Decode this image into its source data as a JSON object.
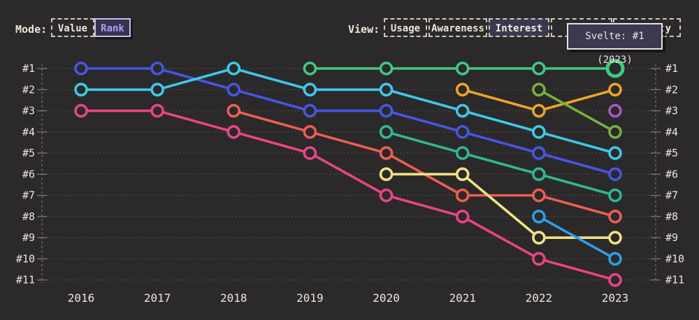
{
  "toolbar": {
    "mode": {
      "label": "Mode:",
      "options": [
        {
          "label": "Value",
          "selected": false
        },
        {
          "label": "Rank",
          "selected": true
        }
      ]
    },
    "view": {
      "label": "View:",
      "options": [
        {
          "label": "Usage",
          "selected": false
        },
        {
          "label": "Awareness",
          "selected": false
        },
        {
          "label": "Interest",
          "selected": true
        },
        {
          "label": "",
          "selected": false,
          "note": "occluded by tooltip"
        },
        {
          "label": "ty",
          "selected": false,
          "note": "partially occluded by tooltip"
        }
      ]
    }
  },
  "tooltip": {
    "text": "Svelte: #1 (2023)"
  },
  "colors": {
    "background": "#2b292a",
    "text": "#ece6da",
    "grid": "#55504b",
    "axis": "#7d776e",
    "accent_purple": "#b29df2",
    "selected_bg": "#3b3850"
  },
  "chart_data": {
    "type": "line",
    "subtype": "bump-rank-chart",
    "x": [
      2016,
      2017,
      2018,
      2019,
      2020,
      2021,
      2022,
      2023
    ],
    "x_tick_labels": [
      "2016",
      "2017",
      "2018",
      "2019",
      "2020",
      "2021",
      "2022",
      "2023"
    ],
    "y_tick_labels": [
      "#1",
      "#2",
      "#3",
      "#4",
      "#5",
      "#6",
      "#7",
      "#8",
      "#9",
      "#10",
      "#11"
    ],
    "ylim": [
      1,
      11
    ],
    "y_axis_sides": "both",
    "grid": "dotted-horizontal",
    "legend": "none",
    "series": [
      {
        "name": "blue",
        "color": "#4656e2",
        "points": [
          [
            2016,
            1
          ],
          [
            2017,
            1
          ],
          [
            2018,
            2
          ],
          [
            2019,
            3
          ],
          [
            2020,
            3
          ],
          [
            2021,
            4
          ],
          [
            2022,
            5
          ],
          [
            2023,
            6
          ]
        ]
      },
      {
        "name": "cyan",
        "color": "#40c8e6",
        "points": [
          [
            2016,
            2
          ],
          [
            2017,
            2
          ],
          [
            2018,
            1
          ],
          [
            2019,
            2
          ],
          [
            2020,
            2
          ],
          [
            2021,
            3
          ],
          [
            2022,
            4
          ],
          [
            2023,
            5
          ]
        ]
      },
      {
        "name": "pink",
        "color": "#e94487",
        "points": [
          [
            2016,
            3
          ],
          [
            2017,
            3
          ],
          [
            2018,
            4
          ],
          [
            2019,
            5
          ],
          [
            2020,
            7
          ],
          [
            2021,
            8
          ],
          [
            2022,
            10
          ],
          [
            2023,
            11
          ]
        ]
      },
      {
        "name": "salmon",
        "color": "#ea5f53",
        "points": [
          [
            2018,
            3
          ],
          [
            2019,
            4
          ],
          [
            2020,
            5
          ],
          [
            2021,
            7
          ],
          [
            2022,
            7
          ],
          [
            2023,
            8
          ]
        ]
      },
      {
        "name": "teal",
        "color": "#30b795",
        "points": [
          [
            2020,
            4
          ],
          [
            2021,
            5
          ],
          [
            2022,
            6
          ],
          [
            2023,
            7
          ]
        ]
      },
      {
        "name": "yellow",
        "color": "#f0e184",
        "points": [
          [
            2020,
            6
          ],
          [
            2021,
            6
          ],
          [
            2022,
            9
          ],
          [
            2023,
            9
          ]
        ]
      },
      {
        "name": "orange",
        "color": "#eda426",
        "points": [
          [
            2021,
            2
          ],
          [
            2022,
            3
          ],
          [
            2023,
            2
          ]
        ]
      },
      {
        "name": "olive",
        "color": "#74b13e",
        "points": [
          [
            2022,
            2
          ],
          [
            2023,
            4
          ]
        ]
      },
      {
        "name": "sky",
        "color": "#2f9de8",
        "points": [
          [
            2022,
            8
          ],
          [
            2023,
            10
          ]
        ]
      },
      {
        "name": "purple",
        "color": "#a55bc4",
        "points": [
          [
            2023,
            3
          ]
        ]
      },
      {
        "name": "Svelte",
        "color": "#42c882",
        "points": [
          [
            2019,
            1
          ],
          [
            2020,
            1
          ],
          [
            2021,
            1
          ],
          [
            2022,
            1
          ],
          [
            2023,
            1
          ]
        ]
      }
    ],
    "highlight": {
      "series": "Svelte",
      "year": 2023,
      "rank": 1,
      "tooltip": "Svelte: #1 (2023)"
    }
  }
}
